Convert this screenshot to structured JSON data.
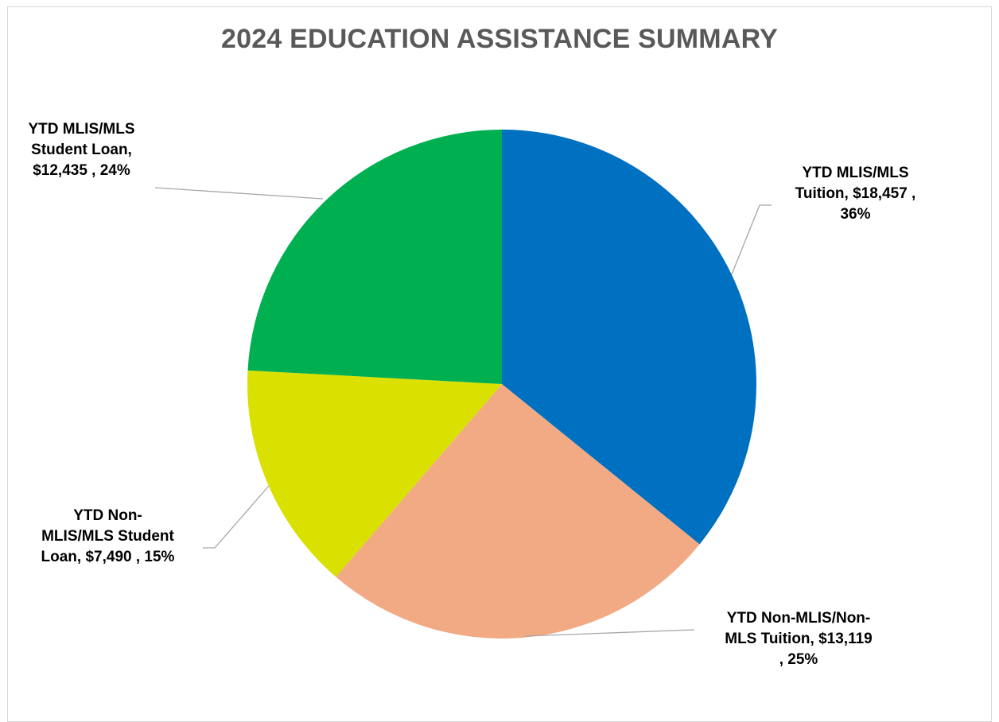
{
  "chart_data": {
    "type": "pie",
    "title": "2024 EDUCATION ASSISTANCE SUMMARY",
    "slices": [
      {
        "name": "YTD MLIS/MLS Tuition",
        "value": 18457,
        "percent": "36%",
        "value_label": "$18,457",
        "color": "#0070C0",
        "label_lines": [
          "YTD MLIS/MLS",
          "Tuition, $18,457 ,",
          "36%"
        ]
      },
      {
        "name": "YTD Non-MLIS/Non-MLS Tuition",
        "value": 13119,
        "percent": "25%",
        "value_label": "$13,119",
        "color": "#F2AA84",
        "label_lines": [
          "YTD Non-MLIS/Non-",
          "MLS Tuition, $13,119",
          ", 25%"
        ]
      },
      {
        "name": "YTD Non-MLIS/MLS Student Loan",
        "value": 7490,
        "percent": "15%",
        "value_label": "$7,490",
        "color": "#DAE000",
        "label_lines": [
          "YTD Non-",
          "MLIS/MLS Student",
          "Loan, $7,490 , 15%"
        ]
      },
      {
        "name": "YTD MLIS/MLS Student Loan",
        "value": 12435,
        "percent": "24%",
        "value_label": "$12,435",
        "color": "#00B050",
        "label_lines": [
          "YTD MLIS/MLS",
          "Student Loan,",
          "$12,435 , 24%"
        ]
      }
    ],
    "legend": "none",
    "data_labels": "outside with leader lines"
  }
}
